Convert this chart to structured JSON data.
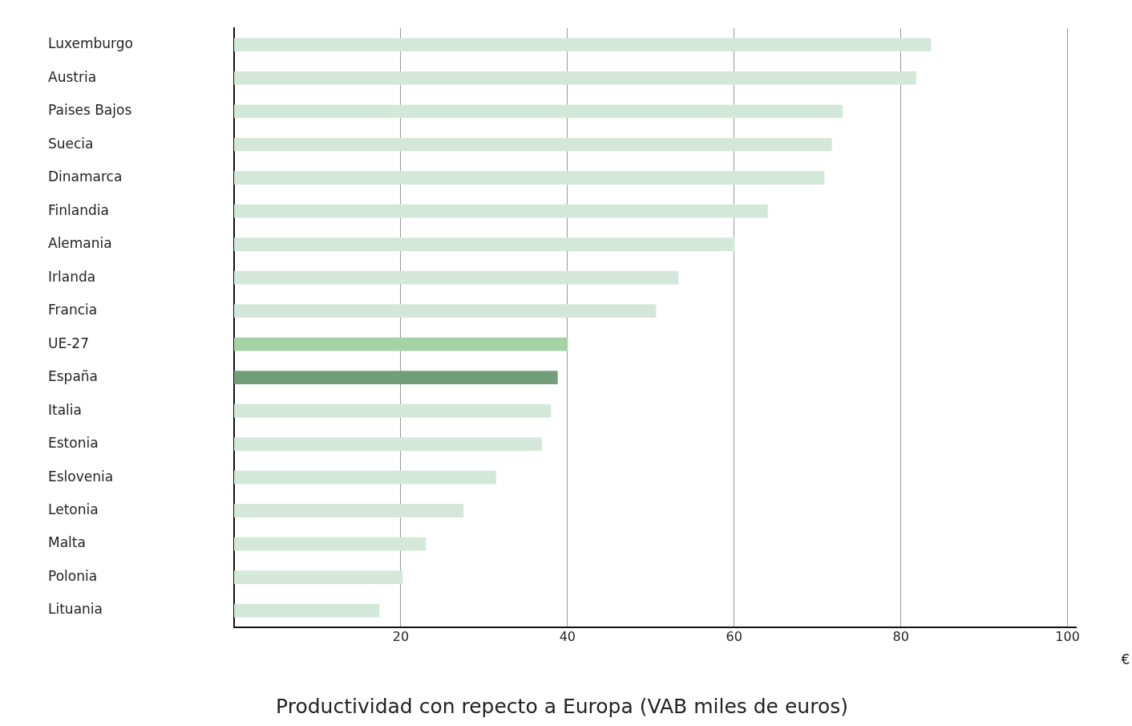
{
  "chart_data": {
    "type": "bar",
    "orientation": "horizontal",
    "title": "Productividad con repecto a Europa (VAB miles de euros)",
    "xlabel": "€",
    "categories": [
      "Luxemburgo",
      "Austria",
      "Paises Bajos",
      "Suecia",
      "Dinamarca",
      "Finlandia",
      "Alemania",
      "Irlanda",
      "Francia",
      "UE-27",
      "España",
      "Italia",
      "Estonia",
      "Eslovenia",
      "Letonia",
      "Malta",
      "Polonia",
      "Lituania"
    ],
    "values": [
      83.6,
      81.8,
      73.0,
      71.7,
      70.8,
      64.0,
      60.0,
      53.3,
      50.6,
      40.0,
      38.8,
      38.0,
      36.9,
      31.4,
      27.5,
      23.0,
      20.2,
      17.4
    ],
    "colors": [
      "#d3e8da",
      "#d3e8da",
      "#d3e8da",
      "#d3e8da",
      "#d3e8da",
      "#d3e8da",
      "#d3e8da",
      "#d3e8da",
      "#d3e8da",
      "#a6d3a5",
      "#739e7a",
      "#d3e8da",
      "#d3e8da",
      "#d3e8da",
      "#d3e8da",
      "#d3e8da",
      "#d3e8da",
      "#d3e8da"
    ],
    "xlim": [
      0,
      101
    ],
    "xticks": [
      20,
      40,
      60,
      80,
      100
    ],
    "grid": "x",
    "legend": false
  }
}
